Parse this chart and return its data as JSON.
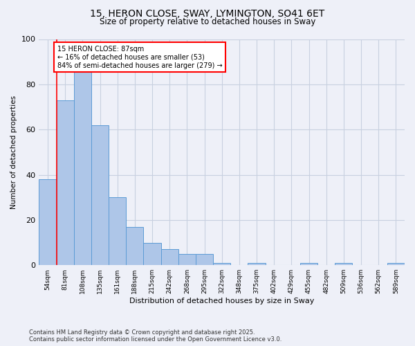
{
  "title_line1": "15, HERON CLOSE, SWAY, LYMINGTON, SO41 6ET",
  "title_line2": "Size of property relative to detached houses in Sway",
  "xlabel": "Distribution of detached houses by size in Sway",
  "ylabel": "Number of detached properties",
  "categories": [
    "54sqm",
    "81sqm",
    "108sqm",
    "135sqm",
    "161sqm",
    "188sqm",
    "215sqm",
    "242sqm",
    "268sqm",
    "295sqm",
    "322sqm",
    "348sqm",
    "375sqm",
    "402sqm",
    "429sqm",
    "455sqm",
    "482sqm",
    "509sqm",
    "536sqm",
    "562sqm",
    "589sqm"
  ],
  "values": [
    38,
    73,
    87,
    62,
    30,
    17,
    10,
    7,
    5,
    5,
    1,
    0,
    1,
    0,
    0,
    1,
    0,
    1,
    0,
    0,
    1
  ],
  "bar_color": "#aec6e8",
  "bar_edge_color": "#5b9bd5",
  "red_line_x": 0.5,
  "annotation_text": "15 HERON CLOSE: 87sqm\n← 16% of detached houses are smaller (53)\n84% of semi-detached houses are larger (279) →",
  "annotation_box_color": "white",
  "annotation_box_edge": "red",
  "ylim": [
    0,
    100
  ],
  "grid_color": "#c8d0e0",
  "background_color": "#eef0f8",
  "footer_line1": "Contains HM Land Registry data © Crown copyright and database right 2025.",
  "footer_line2": "Contains public sector information licensed under the Open Government Licence v3.0."
}
